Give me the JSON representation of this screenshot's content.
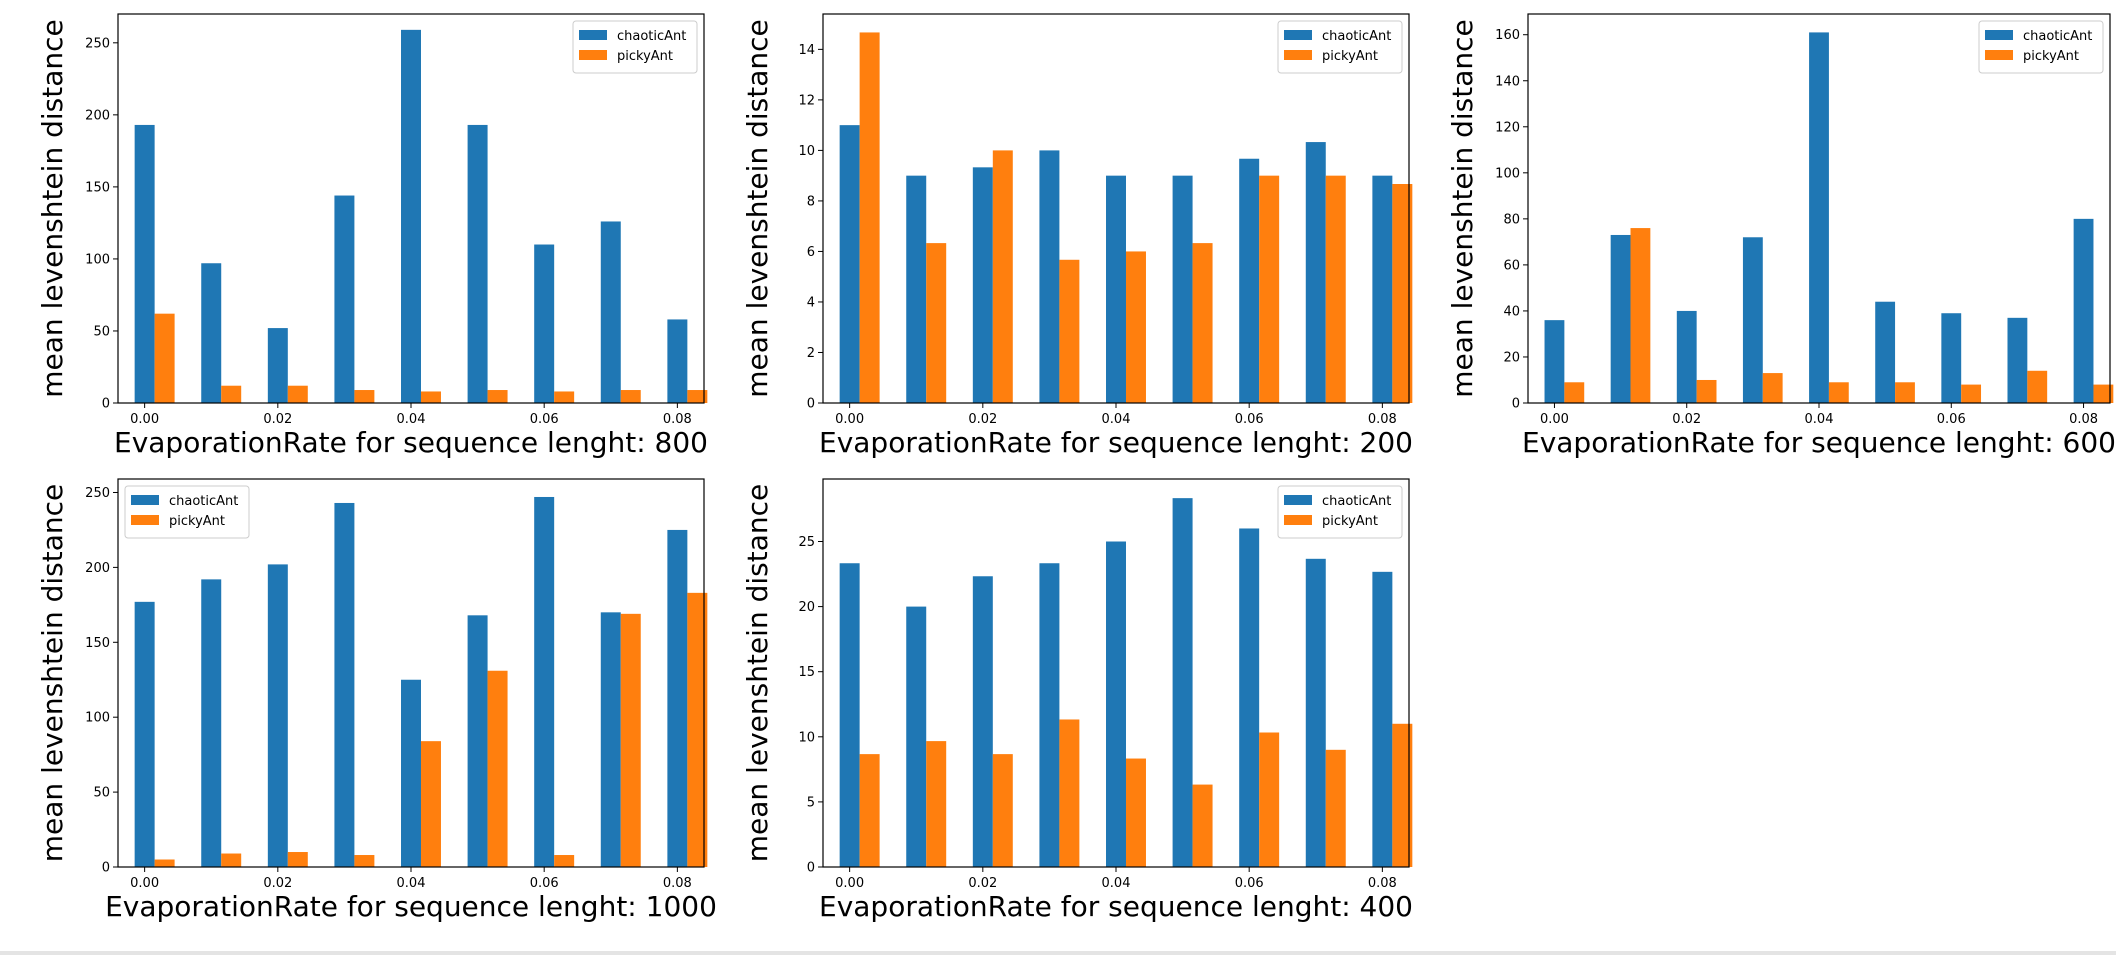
{
  "colors": {
    "chaotic": "#1f77b4",
    "picky": "#ff7f0e"
  },
  "chart_data": [
    {
      "type": "bar",
      "xlabel": "EvaporationRate for sequence lenght: 800",
      "ylabel": "mean levenshtein distance",
      "x": [
        0.0,
        0.01,
        0.02,
        0.03,
        0.04,
        0.05,
        0.06,
        0.07,
        0.08
      ],
      "xticks": [
        "0.00",
        "0.02",
        "0.04",
        "0.06",
        "0.08"
      ],
      "ylim": [
        0,
        270
      ],
      "yticks": [
        0,
        50,
        100,
        150,
        200,
        250
      ],
      "legend": "top-right",
      "series": [
        {
          "name": "chaoticAnt",
          "values": [
            193,
            97,
            52,
            144,
            259,
            193,
            110,
            126,
            58
          ]
        },
        {
          "name": "pickyAnt",
          "values": [
            62,
            12,
            12,
            9,
            8,
            9,
            8,
            9,
            9
          ]
        }
      ]
    },
    {
      "type": "bar",
      "xlabel": "EvaporationRate for sequence lenght: 200",
      "ylabel": "mean levenshtein distance",
      "x": [
        0.0,
        0.01,
        0.02,
        0.03,
        0.04,
        0.05,
        0.06,
        0.07,
        0.08
      ],
      "xticks": [
        "0.00",
        "0.02",
        "0.04",
        "0.06",
        "0.08"
      ],
      "ylim": [
        0,
        15.4
      ],
      "yticks": [
        0,
        2,
        4,
        6,
        8,
        10,
        12,
        14
      ],
      "legend": "top-right",
      "series": [
        {
          "name": "chaoticAnt",
          "values": [
            11.0,
            9.0,
            9.33,
            10.0,
            9.0,
            9.0,
            9.67,
            10.33,
            9.0
          ]
        },
        {
          "name": "pickyAnt",
          "values": [
            14.67,
            6.33,
            10.0,
            5.67,
            6.0,
            6.33,
            9.0,
            9.0,
            8.67
          ]
        }
      ]
    },
    {
      "type": "bar",
      "xlabel": "EvaporationRate for sequence lenght: 600",
      "ylabel": "mean levenshtein distance",
      "x": [
        0.0,
        0.01,
        0.02,
        0.03,
        0.04,
        0.05,
        0.06,
        0.07,
        0.08
      ],
      "xticks": [
        "0.00",
        "0.02",
        "0.04",
        "0.06",
        "0.08"
      ],
      "ylim": [
        0,
        169
      ],
      "yticks": [
        0,
        20,
        40,
        60,
        80,
        100,
        120,
        140,
        160
      ],
      "legend": "top-right",
      "series": [
        {
          "name": "chaoticAnt",
          "values": [
            36,
            73,
            40,
            72,
            161,
            44,
            39,
            37,
            80
          ]
        },
        {
          "name": "pickyAnt",
          "values": [
            9,
            76,
            10,
            13,
            9,
            9,
            8,
            14,
            8
          ]
        }
      ]
    },
    {
      "type": "bar",
      "xlabel": "EvaporationRate for sequence lenght: 1000",
      "ylabel": "mean levenshtein distance",
      "x": [
        0.0,
        0.01,
        0.02,
        0.03,
        0.04,
        0.05,
        0.06,
        0.07,
        0.08
      ],
      "xticks": [
        "0.00",
        "0.02",
        "0.04",
        "0.06",
        "0.08"
      ],
      "ylim": [
        0,
        259
      ],
      "yticks": [
        0,
        50,
        100,
        150,
        200,
        250
      ],
      "legend": "top-left",
      "series": [
        {
          "name": "chaoticAnt",
          "values": [
            177,
            192,
            202,
            243,
            125,
            168,
            247,
            170,
            225
          ]
        },
        {
          "name": "pickyAnt",
          "values": [
            5,
            9,
            10,
            8,
            84,
            131,
            8,
            169,
            183
          ]
        }
      ]
    },
    {
      "type": "bar",
      "xlabel": "EvaporationRate for sequence lenght: 400",
      "ylabel": "mean levenshtein distance",
      "x": [
        0.0,
        0.01,
        0.02,
        0.03,
        0.04,
        0.05,
        0.06,
        0.07,
        0.08
      ],
      "xticks": [
        "0.00",
        "0.02",
        "0.04",
        "0.06",
        "0.08"
      ],
      "ylim": [
        0,
        29.8
      ],
      "yticks": [
        0,
        5,
        10,
        15,
        20,
        25
      ],
      "legend": "top-right",
      "series": [
        {
          "name": "chaoticAnt",
          "values": [
            23.33,
            20.0,
            22.33,
            23.33,
            25.0,
            28.33,
            26.0,
            23.67,
            22.67
          ]
        },
        {
          "name": "pickyAnt",
          "values": [
            8.67,
            9.67,
            8.67,
            11.33,
            8.33,
            6.33,
            10.33,
            9.0,
            11.0
          ]
        }
      ]
    }
  ]
}
